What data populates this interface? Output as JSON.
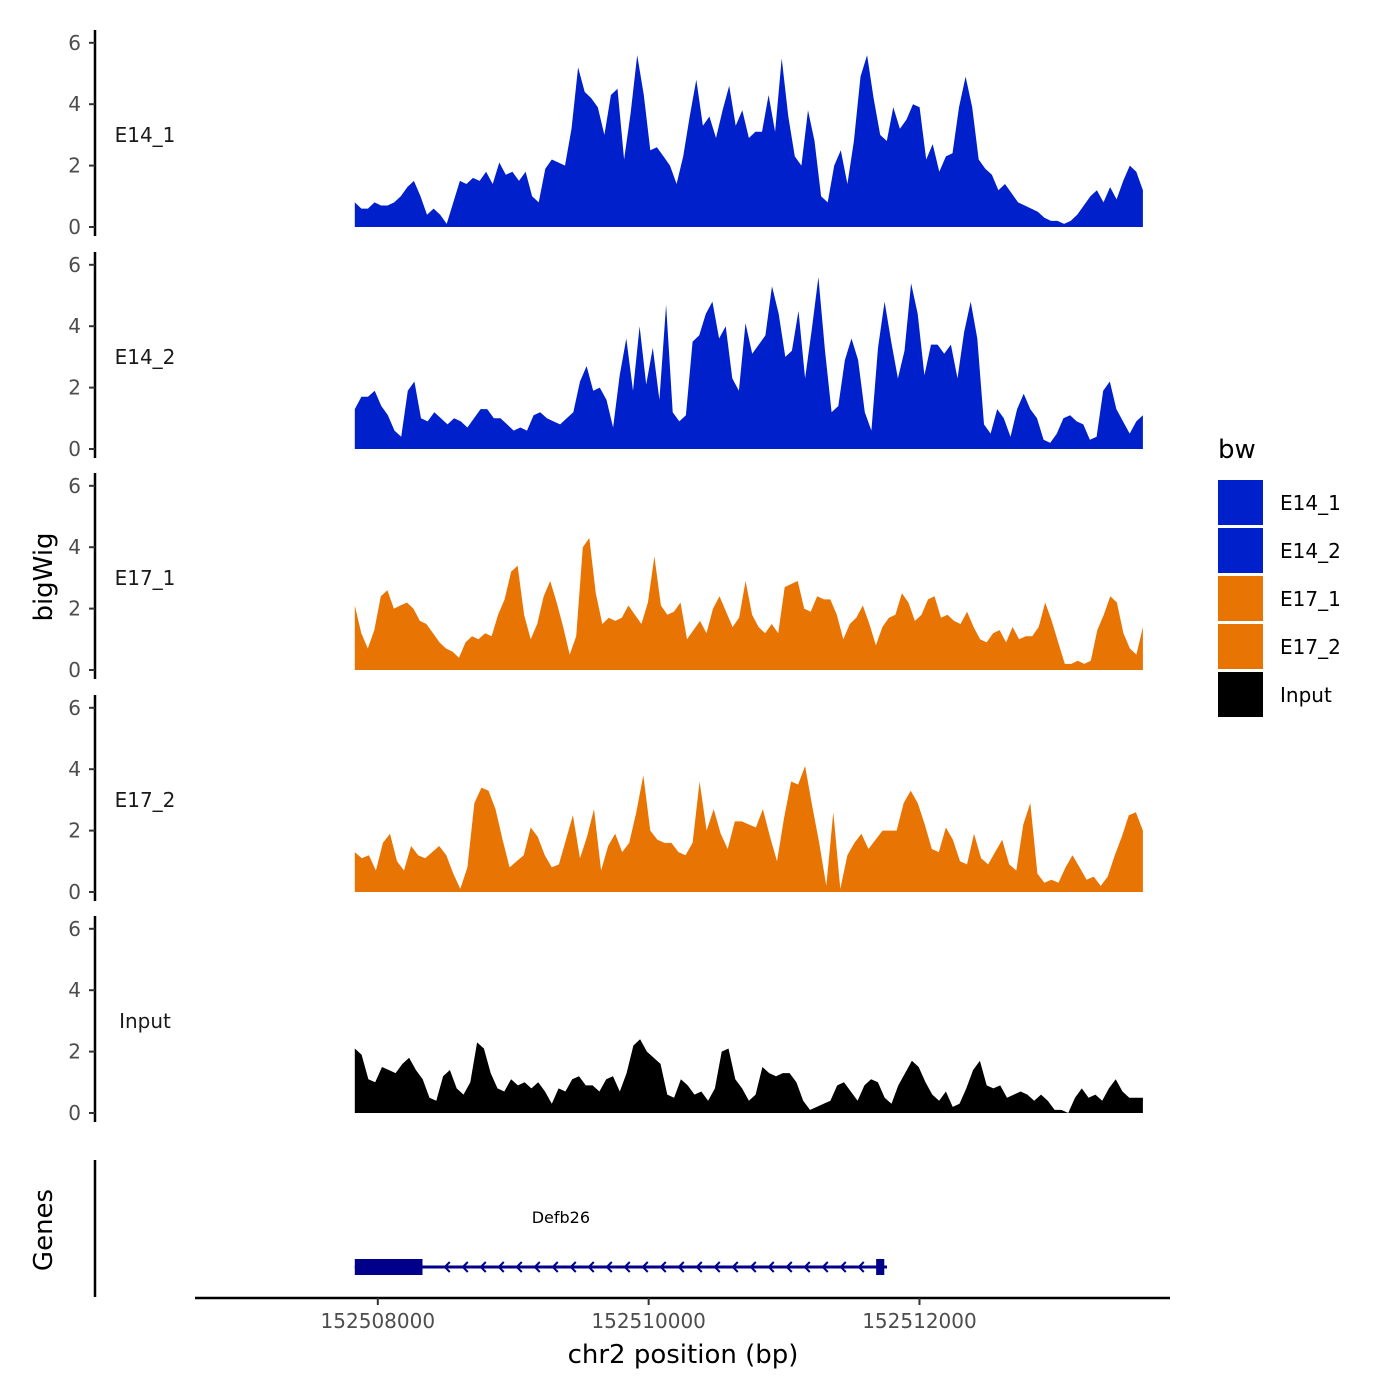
{
  "chart_data": {
    "type": "area",
    "title": "",
    "xlabel": "chr2 position (bp)",
    "ylabel": "bigWig",
    "genes_label": "Genes",
    "xlim": [
      152506650,
      152513850
    ],
    "ylim": [
      0,
      6.3
    ],
    "x_ticks": [
      152508000,
      152510000,
      152512000
    ],
    "x_tick_labels": [
      "152508000",
      "152510000",
      "152512000"
    ],
    "y_ticks": [
      0,
      2,
      4,
      6
    ],
    "y_tick_labels": [
      "0",
      "2",
      "4",
      "6"
    ],
    "legend": {
      "title": "bw",
      "position": "right",
      "entries": [
        {
          "label": "E14_1",
          "color": "#0020CC"
        },
        {
          "label": "E14_2",
          "color": "#0020CC"
        },
        {
          "label": "E17_1",
          "color": "#E87404"
        },
        {
          "label": "E17_2",
          "color": "#E87404"
        },
        {
          "label": "Input",
          "color": "#000000"
        }
      ]
    },
    "track_range": [
      152507830,
      152513650
    ],
    "series": [
      {
        "name": "E14_1",
        "color": "#0020CC",
        "values": [
          0.8,
          0.6,
          0.6,
          0.8,
          0.7,
          0.7,
          0.8,
          1.0,
          1.3,
          1.5,
          1.0,
          0.4,
          0.6,
          0.4,
          0.1,
          0.8,
          1.5,
          1.4,
          1.6,
          1.5,
          1.8,
          1.4,
          2.1,
          1.7,
          1.8,
          1.5,
          1.8,
          1.0,
          0.8,
          1.9,
          2.2,
          2.1,
          2.0,
          3.2,
          5.2,
          4.4,
          4.2,
          3.9,
          3.0,
          4.3,
          4.5,
          2.2,
          3.7,
          5.6,
          4.3,
          2.5,
          2.6,
          2.3,
          2.0,
          1.4,
          2.3,
          3.6,
          4.8,
          3.3,
          3.6,
          2.9,
          3.8,
          4.6,
          3.3,
          3.8,
          2.9,
          3.1,
          3.1,
          4.3,
          3.1,
          5.5,
          3.6,
          2.3,
          2.0,
          3.8,
          2.8,
          1.0,
          0.8,
          2.0,
          2.5,
          1.4,
          2.8,
          4.9,
          5.6,
          4.2,
          3.0,
          2.8,
          3.9,
          3.2,
          3.5,
          4.0,
          3.9,
          2.2,
          2.7,
          1.8,
          2.3,
          2.4,
          3.9,
          4.9,
          3.9,
          2.2,
          1.9,
          1.7,
          1.2,
          1.4,
          1.1,
          0.8,
          0.7,
          0.6,
          0.5,
          0.3,
          0.2,
          0.2,
          0.1,
          0.2,
          0.4,
          0.7,
          1.0,
          1.2,
          0.8,
          1.3,
          0.9,
          1.5,
          2.0,
          1.8,
          1.2
        ]
      },
      {
        "name": "E14_2",
        "color": "#0020CC",
        "values": [
          1.3,
          1.7,
          1.7,
          1.9,
          1.4,
          1.1,
          0.6,
          0.4,
          1.9,
          2.2,
          1.0,
          0.9,
          1.2,
          1.0,
          0.8,
          1.0,
          0.9,
          0.7,
          1.0,
          1.3,
          1.3,
          1.0,
          1.0,
          0.8,
          0.6,
          0.7,
          0.6,
          1.1,
          1.2,
          1.0,
          0.9,
          0.8,
          1.0,
          1.2,
          2.2,
          2.7,
          1.9,
          2.0,
          1.6,
          0.7,
          2.4,
          3.6,
          1.9,
          4.0,
          2.1,
          3.3,
          1.6,
          4.7,
          1.2,
          0.9,
          1.1,
          3.5,
          3.7,
          4.4,
          4.8,
          3.6,
          4.0,
          2.3,
          1.9,
          4.1,
          3.1,
          3.4,
          3.7,
          5.3,
          4.4,
          3.0,
          3.2,
          4.5,
          2.3,
          3.9,
          5.6,
          3.2,
          1.2,
          1.4,
          2.9,
          3.6,
          2.9,
          1.2,
          0.6,
          3.3,
          4.8,
          3.5,
          2.3,
          3.2,
          5.4,
          4.4,
          2.4,
          3.4,
          3.4,
          3.1,
          3.4,
          2.3,
          3.8,
          4.8,
          3.6,
          0.8,
          0.5,
          1.3,
          1.0,
          0.4,
          1.3,
          1.8,
          1.3,
          1.0,
          0.3,
          0.2,
          0.5,
          1.0,
          1.1,
          0.9,
          0.8,
          0.3,
          0.4,
          1.9,
          2.2,
          1.3,
          0.9,
          0.5,
          0.9,
          1.1
        ]
      },
      {
        "name": "E17_1",
        "color": "#E87404",
        "values": [
          2.1,
          1.2,
          0.7,
          1.3,
          2.4,
          2.6,
          2.0,
          2.1,
          2.2,
          2.0,
          1.6,
          1.5,
          1.2,
          0.9,
          0.7,
          0.6,
          0.4,
          0.9,
          1.1,
          1.0,
          1.2,
          1.1,
          1.8,
          2.3,
          3.2,
          3.4,
          1.8,
          1.0,
          1.5,
          2.4,
          2.9,
          2.2,
          1.4,
          0.5,
          1.1,
          4.0,
          4.3,
          2.5,
          1.5,
          1.7,
          1.6,
          1.7,
          2.1,
          1.8,
          1.5,
          2.2,
          3.7,
          2.1,
          1.8,
          1.9,
          2.2,
          1.0,
          1.3,
          1.6,
          1.2,
          2.0,
          2.4,
          1.9,
          1.4,
          1.7,
          2.9,
          1.8,
          1.4,
          1.2,
          1.5,
          1.2,
          2.7,
          2.8,
          2.9,
          2.0,
          1.9,
          2.4,
          2.3,
          2.3,
          1.8,
          1.0,
          1.5,
          1.7,
          2.1,
          1.5,
          0.8,
          1.4,
          1.7,
          1.8,
          2.5,
          2.2,
          1.6,
          1.8,
          2.3,
          2.4,
          1.7,
          1.8,
          1.6,
          1.5,
          1.9,
          1.4,
          1.0,
          0.9,
          1.2,
          1.3,
          0.9,
          1.4,
          1.0,
          1.1,
          1.1,
          1.4,
          2.2,
          1.6,
          0.9,
          0.2,
          0.2,
          0.3,
          0.2,
          0.3,
          1.3,
          1.8,
          2.4,
          2.2,
          1.2,
          0.7,
          0.5,
          1.4
        ]
      },
      {
        "name": "E17_2",
        "color": "#E87404",
        "values": [
          1.3,
          1.1,
          1.2,
          0.7,
          1.6,
          1.9,
          1.0,
          0.7,
          1.5,
          1.2,
          1.1,
          1.3,
          1.5,
          1.2,
          0.6,
          0.1,
          0.8,
          2.9,
          3.4,
          3.3,
          2.7,
          1.7,
          0.8,
          1.0,
          1.2,
          2.1,
          1.8,
          1.2,
          0.8,
          0.9,
          1.7,
          2.5,
          1.1,
          1.8,
          2.7,
          0.7,
          1.5,
          1.9,
          1.3,
          1.6,
          2.6,
          3.8,
          2.0,
          1.7,
          1.6,
          1.6,
          1.3,
          1.2,
          1.6,
          3.6,
          2.0,
          2.7,
          1.9,
          1.4,
          2.3,
          2.3,
          2.2,
          2.1,
          2.7,
          1.8,
          1.0,
          2.4,
          3.6,
          3.5,
          4.1,
          2.8,
          1.6,
          0.2,
          2.6,
          0.1,
          1.2,
          1.6,
          1.9,
          1.4,
          1.7,
          2.0,
          2.0,
          2.0,
          2.9,
          3.3,
          2.9,
          2.2,
          1.4,
          1.3,
          2.1,
          1.7,
          1.0,
          0.9,
          1.9,
          1.1,
          0.9,
          1.3,
          1.7,
          0.9,
          0.7,
          2.2,
          2.9,
          0.6,
          0.3,
          0.4,
          0.3,
          0.8,
          1.2,
          0.8,
          0.4,
          0.5,
          0.2,
          0.5,
          1.2,
          1.8,
          2.5,
          2.6,
          2.0
        ]
      },
      {
        "name": "Input",
        "color": "#000000",
        "values": [
          2.1,
          1.9,
          1.1,
          1.0,
          1.5,
          1.4,
          1.3,
          1.6,
          1.8,
          1.4,
          1.1,
          0.5,
          0.4,
          1.2,
          1.4,
          0.8,
          0.6,
          1.0,
          2.3,
          2.1,
          1.3,
          0.8,
          0.7,
          1.1,
          0.9,
          1.0,
          0.8,
          1.0,
          0.7,
          0.3,
          0.8,
          0.7,
          1.1,
          1.2,
          0.9,
          0.9,
          0.7,
          1.1,
          1.2,
          0.7,
          1.3,
          2.2,
          2.4,
          2.0,
          1.8,
          1.6,
          0.6,
          0.5,
          1.1,
          0.9,
          0.6,
          0.7,
          0.4,
          0.8,
          2.0,
          2.1,
          1.1,
          0.8,
          0.4,
          0.6,
          1.5,
          1.3,
          1.2,
          1.3,
          1.3,
          1.0,
          0.4,
          0.1,
          0.2,
          0.3,
          0.4,
          0.9,
          1.0,
          0.7,
          0.4,
          0.9,
          1.1,
          1.0,
          0.5,
          0.3,
          0.9,
          1.3,
          1.7,
          1.5,
          1.0,
          0.6,
          0.4,
          0.7,
          0.2,
          0.3,
          0.8,
          1.4,
          1.7,
          0.9,
          0.8,
          0.9,
          0.5,
          0.6,
          0.7,
          0.6,
          0.4,
          0.6,
          0.4,
          0.1,
          0.1,
          0.0,
          0.5,
          0.8,
          0.5,
          0.6,
          0.4,
          0.8,
          1.1,
          0.7,
          0.5,
          0.5,
          0.5
        ]
      }
    ],
    "gene": {
      "name": "Defb26",
      "strand": "-",
      "start": 152507830,
      "end": 152511760,
      "exons": [
        [
          152507830,
          152508330
        ],
        [
          152511680,
          152511740
        ]
      ],
      "color": "#00008B"
    }
  }
}
